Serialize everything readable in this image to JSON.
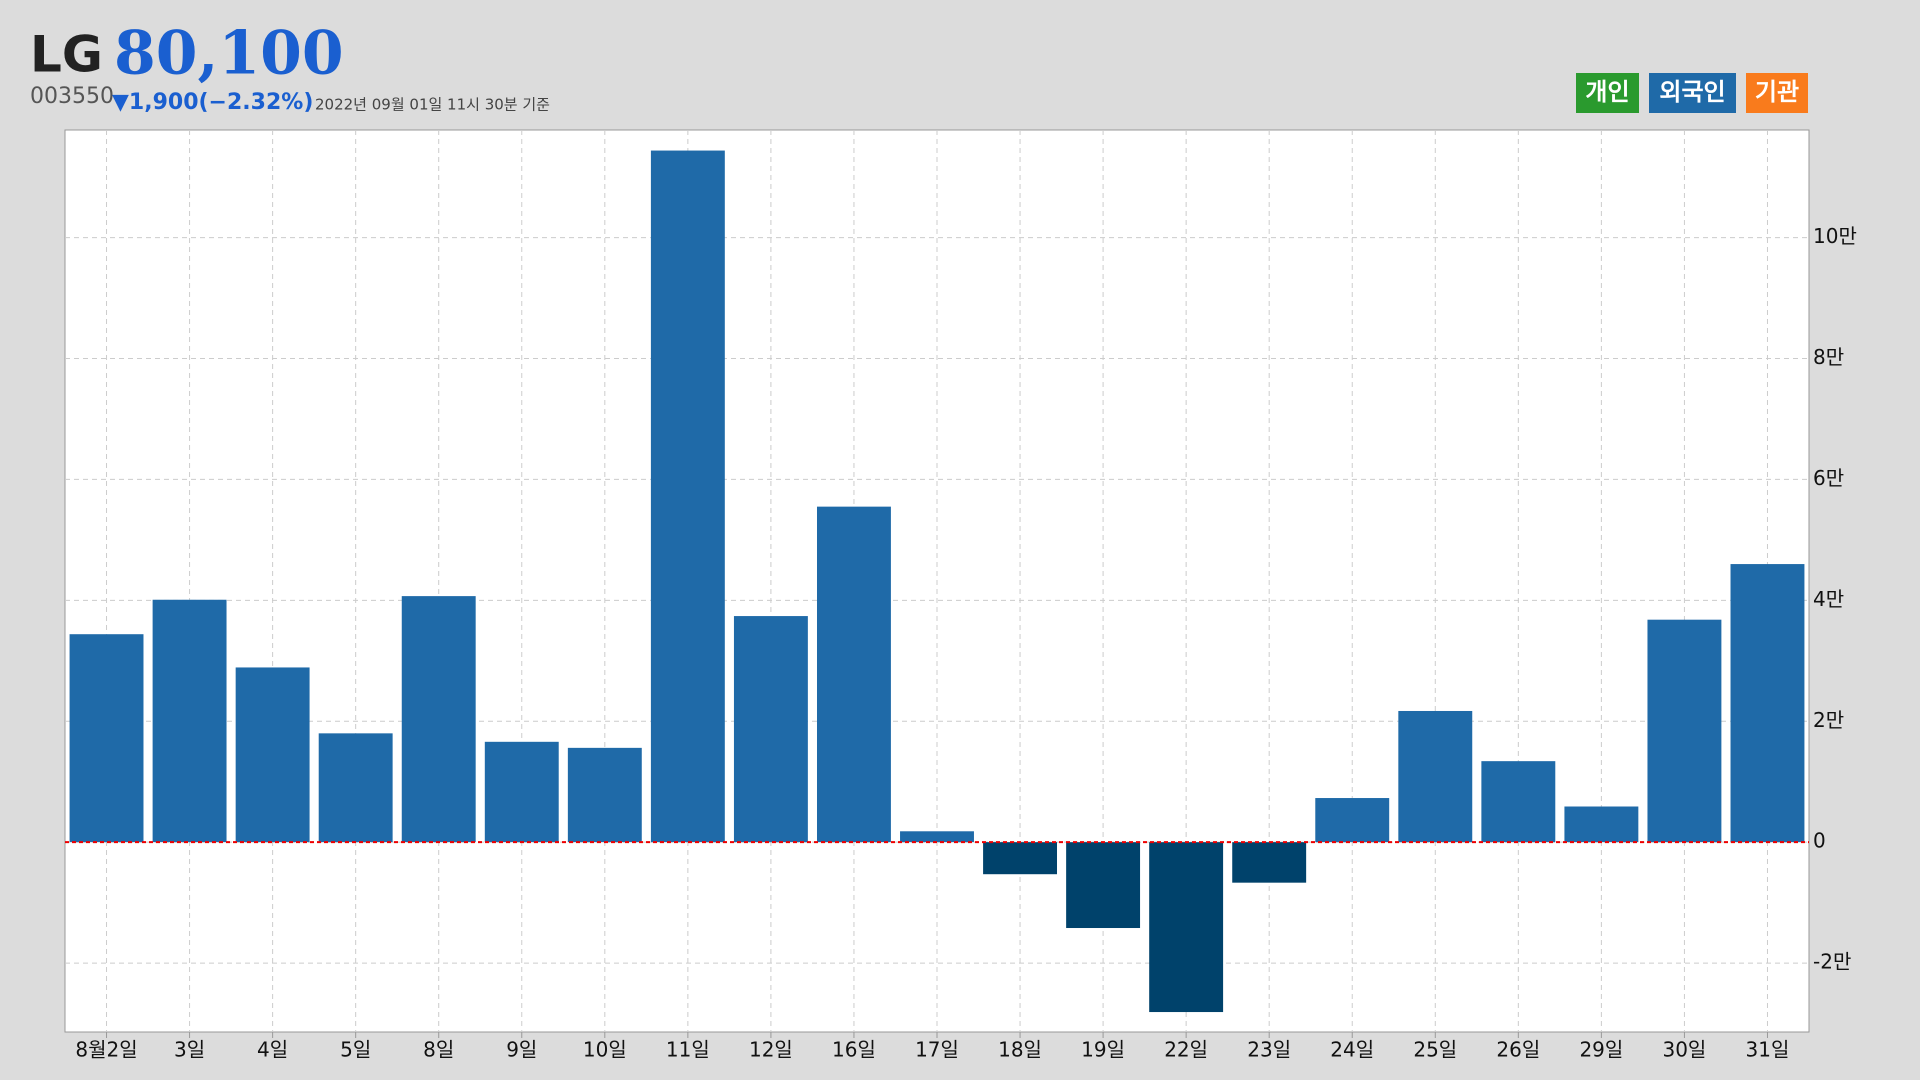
{
  "header": {
    "name": "LG",
    "price": "80,100",
    "code": "003550",
    "change": "▼1,900(−2.32%)",
    "timestamp": "2022년 09월 01일 11시 30분 기준"
  },
  "buttons": [
    {
      "label": "개인",
      "color": "#2a9a2e"
    },
    {
      "label": "외국인",
      "color": "#1f6aa8"
    },
    {
      "label": "기관",
      "color": "#f97b1c"
    }
  ],
  "chart_data": {
    "type": "bar",
    "categories": [
      "8월2일",
      "3일",
      "4일",
      "5일",
      "8일",
      "9일",
      "10일",
      "11일",
      "12일",
      "16일",
      "17일",
      "18일",
      "19일",
      "22일",
      "23일",
      "24일",
      "25일",
      "26일",
      "29일",
      "30일",
      "31일"
    ],
    "values": [
      34400,
      40100,
      28900,
      18000,
      40700,
      16600,
      15600,
      114400,
      37400,
      55500,
      1800,
      -5300,
      -14200,
      -28100,
      -6700,
      7300,
      21700,
      13400,
      5900,
      36800,
      46000
    ],
    "color": "#1f6aa8",
    "negative_color": "#00426b",
    "ylim": [
      -31400,
      117800
    ],
    "yticks": [
      {
        "value": -20000,
        "label": "-2만"
      },
      0,
      {
        "value": 20000,
        "label": "2만"
      },
      {
        "value": 40000,
        "label": "4만"
      },
      {
        "value": 60000,
        "label": "6만"
      },
      {
        "value": 80000,
        "label": "8만"
      },
      {
        "value": 100000,
        "label": "10만"
      }
    ],
    "grid": true
  }
}
